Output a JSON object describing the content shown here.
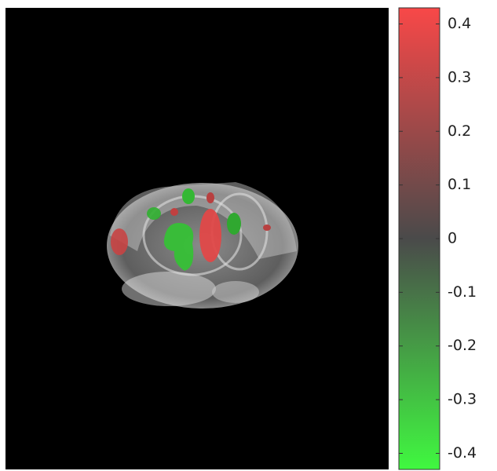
{
  "chart_data": {
    "type": "image",
    "colorbar": {
      "clim": [
        -0.43,
        0.43
      ],
      "ticks": [
        -0.4,
        -0.3,
        -0.2,
        -0.1,
        0,
        0.1,
        0.2,
        0.3,
        0.4
      ],
      "colormap": [
        "#40f840",
        "#4a4a4a",
        "#f84848"
      ]
    }
  }
}
